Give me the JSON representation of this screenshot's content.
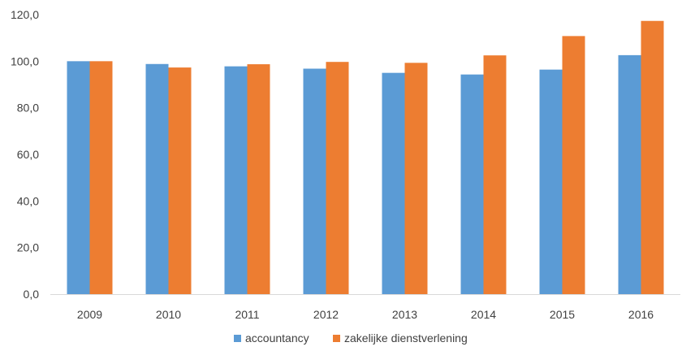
{
  "chart_data": {
    "type": "bar",
    "categories": [
      "2009",
      "2010",
      "2011",
      "2012",
      "2013",
      "2014",
      "2015",
      "2016"
    ],
    "series": [
      {
        "name": "accountancy",
        "color": "#5B9BD5",
        "values": [
          100.0,
          98.8,
          97.8,
          96.8,
          95.0,
          94.3,
          96.4,
          102.6
        ]
      },
      {
        "name": "zakelijke dienstverlening",
        "color": "#ED7D31",
        "values": [
          100.0,
          97.3,
          98.7,
          99.7,
          99.3,
          102.5,
          110.8,
          117.3
        ]
      }
    ],
    "y_ticks": [
      "0,0",
      "20,0",
      "40,0",
      "60,0",
      "80,0",
      "100,0",
      "120,0"
    ],
    "ylim": [
      0,
      120
    ],
    "grid": false,
    "legend_position": "bottom-center",
    "title": "",
    "xlabel": "",
    "ylabel": ""
  }
}
